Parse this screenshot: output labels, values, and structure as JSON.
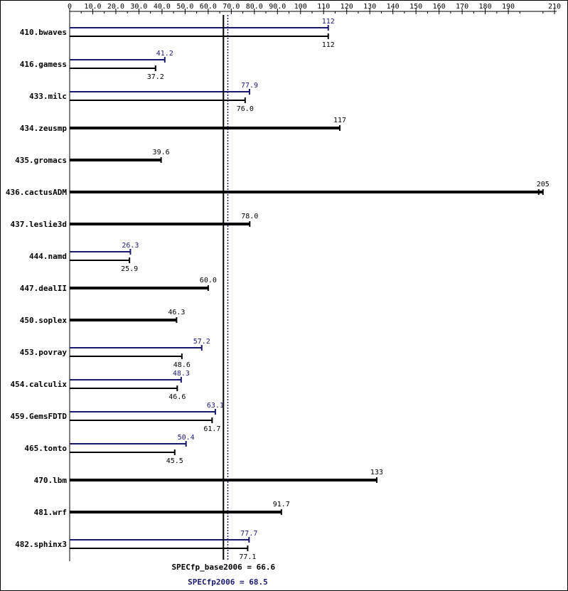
{
  "chart_data": {
    "type": "bar",
    "orientation": "horizontal",
    "xlim": [
      0,
      210
    ],
    "ticks": [
      0,
      10.0,
      20.0,
      30.0,
      40.0,
      50.0,
      60.0,
      70.0,
      80.0,
      90.0,
      100,
      110,
      120,
      130,
      140,
      150,
      160,
      170,
      180,
      190,
      210
    ],
    "tick_labels": [
      "0",
      "10.0",
      "20.0",
      "30.0",
      "40.0",
      "50.0",
      "60.0",
      "70.0",
      "80.0",
      "90.0",
      "100",
      "110",
      "120",
      "130",
      "140",
      "150",
      "160",
      "170",
      "180",
      "190",
      "210"
    ],
    "categories": [
      "410.bwaves",
      "416.gamess",
      "433.milc",
      "434.zeusmp",
      "435.gromacs",
      "436.cactusADM",
      "437.leslie3d",
      "444.namd",
      "447.dealII",
      "450.soplex",
      "453.povray",
      "454.calculix",
      "459.GemsFDTD",
      "465.tonto",
      "470.lbm",
      "481.wrf",
      "482.sphinx3"
    ],
    "series": [
      {
        "key": "peak",
        "color": "#191970",
        "values": [
          112,
          41.2,
          77.9,
          null,
          null,
          null,
          null,
          26.3,
          null,
          null,
          57.2,
          48.3,
          63.1,
          50.4,
          null,
          null,
          77.7
        ],
        "labels": [
          "112",
          "41.2",
          "77.9",
          null,
          null,
          null,
          null,
          "26.3",
          null,
          null,
          "57.2",
          "48.3",
          "63.1",
          "50.4",
          null,
          null,
          "77.7"
        ]
      },
      {
        "key": "base",
        "color": "#000000",
        "values": [
          112,
          37.2,
          76.0,
          117,
          39.6,
          205,
          78.0,
          25.9,
          60.0,
          46.3,
          48.6,
          46.6,
          61.7,
          45.5,
          133,
          91.7,
          77.1
        ],
        "labels": [
          "112",
          "37.2",
          "76.0",
          "117",
          "39.6",
          "205",
          "78.0",
          "25.9",
          "60.0",
          "46.3",
          "48.6",
          "46.6",
          "61.7",
          "45.5",
          "133",
          "91.7",
          "77.1"
        ]
      }
    ],
    "reference_lines": [
      {
        "key": "base",
        "value": 66.6,
        "label": "SPECfp_base2006 = 66.6",
        "color": "#000000",
        "style": "solid"
      },
      {
        "key": "peak",
        "value": 68.5,
        "label": "SPECfp2006 = 68.5",
        "color": "#191970",
        "style": "dotted"
      }
    ],
    "grid": false
  }
}
